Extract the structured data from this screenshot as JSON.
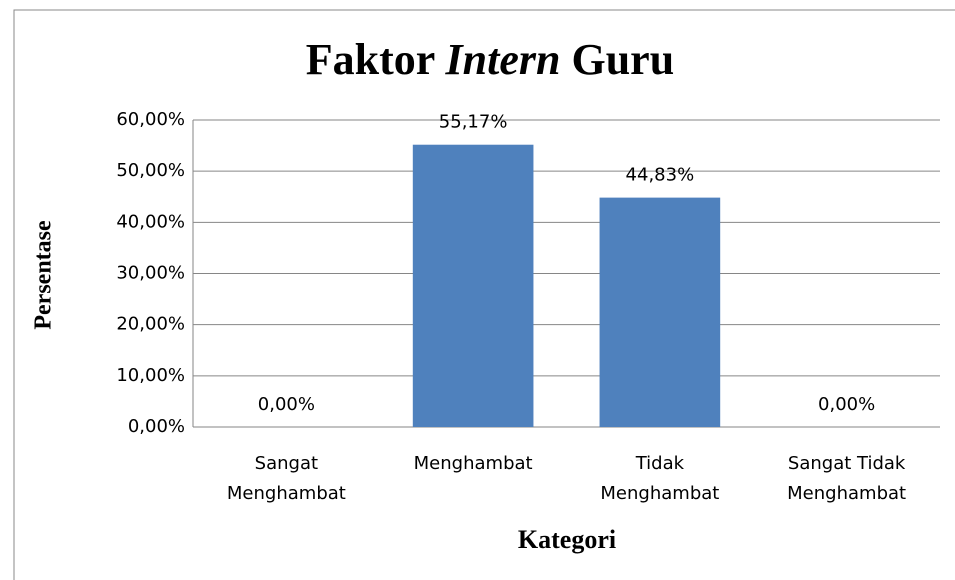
{
  "chart_data": {
    "type": "bar",
    "title": [
      "Faktor",
      "Intern",
      "Guru"
    ],
    "y_label": "Persentase",
    "x_label": "Kategori",
    "categories": [
      [
        "Sangat",
        "Menghambat"
      ],
      [
        "Menghambat"
      ],
      [
        "Tidak",
        "Menghambat"
      ],
      [
        "Sangat Tidak",
        "Menghambat"
      ]
    ],
    "values": [
      0,
      55.17,
      44.83,
      0
    ],
    "value_labels": [
      "0,00%",
      "55,17%",
      "44,83%",
      "0,00%"
    ],
    "color": "#4f81bd",
    "ylim": [
      0,
      60
    ],
    "yticks": [
      {
        "value": 0,
        "label": "0,00%"
      },
      {
        "value": 10,
        "label": "10,00%"
      },
      {
        "value": 20,
        "label": "20,00%"
      },
      {
        "value": 30,
        "label": "30,00%"
      },
      {
        "value": 40,
        "label": "40,00%"
      },
      {
        "value": 50,
        "label": "50,00%"
      },
      {
        "value": 60,
        "label": "60,00%"
      }
    ],
    "grid": true
  }
}
